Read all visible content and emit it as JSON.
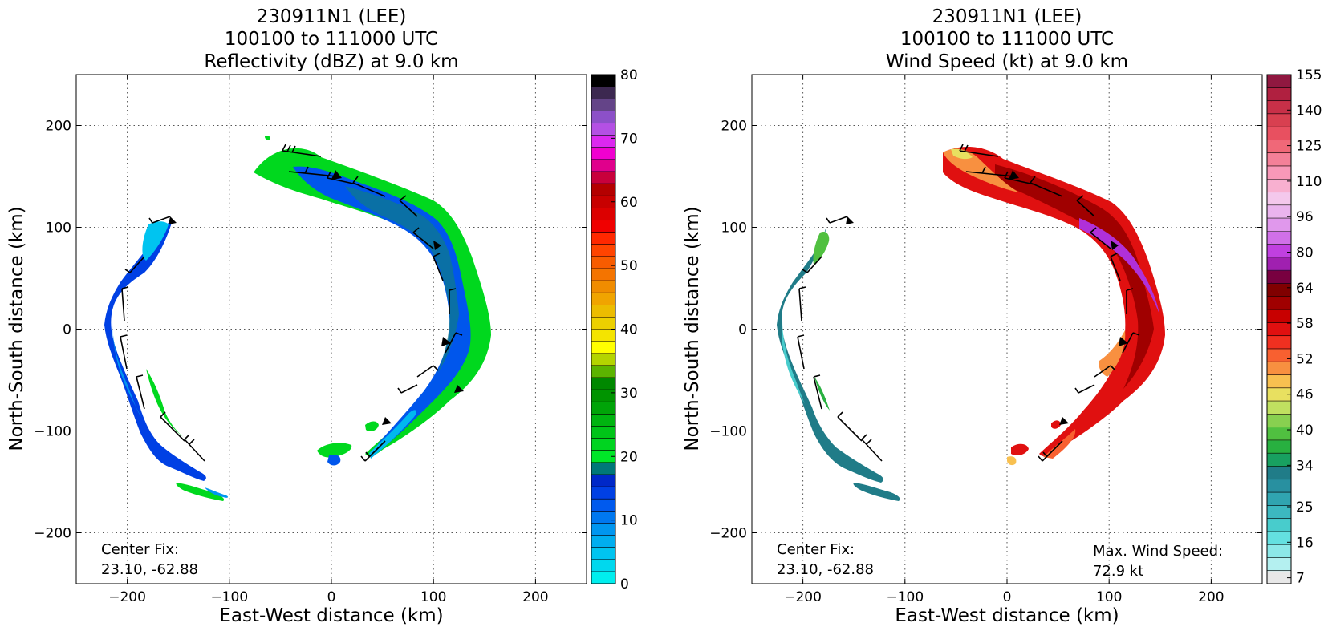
{
  "chart_data": [
    {
      "type": "heatmap",
      "title_lines": [
        "230911N1 (LEE)",
        "100100 to 111000 UTC",
        "Reflectivity (dBZ) at 9.0 km"
      ],
      "xlabel": "East-West distance (km)",
      "ylabel": "North-South distance (km)",
      "xlim": [
        -250,
        250
      ],
      "ylim": [
        -250,
        250
      ],
      "xticks": [
        -200,
        -100,
        0,
        100,
        200
      ],
      "yticks": [
        -200,
        -100,
        0,
        100,
        200
      ],
      "xtick_labels": [
        "−200",
        "−100",
        "0",
        "100",
        "200"
      ],
      "ytick_labels": [
        "−200",
        "−100",
        "0",
        "100",
        "200"
      ],
      "grid": true,
      "center_fix_label": "Center Fix:",
      "center_fix_value": "23.10, -62.88",
      "colorbar": {
        "colors": [
          "#00eeee",
          "#00d8ee",
          "#00c4f0",
          "#00aef0",
          "#0096f0",
          "#0078f0",
          "#005aee",
          "#0040e4",
          "#0028c8",
          "#007878",
          "#00e628",
          "#00d420",
          "#00c418",
          "#00b410",
          "#00a408",
          "#009400",
          "#008800",
          "#5cb400",
          "#b4d400",
          "#ffff00",
          "#f4e400",
          "#ecd000",
          "#ecbc00",
          "#f0a400",
          "#f08c00",
          "#f47400",
          "#f85c00",
          "#ff4400",
          "#ff2800",
          "#f00000",
          "#dc0000",
          "#c80000",
          "#b40000",
          "#c8003c",
          "#e0008c",
          "#f000d0",
          "#dc28f0",
          "#b450e4",
          "#8c50c8",
          "#644488",
          "#3c2850",
          "#000000"
        ],
        "tick_values": [
          0,
          10,
          20,
          30,
          40,
          50,
          60,
          70,
          80
        ],
        "tick_labels": [
          "0",
          "10",
          "20",
          "30",
          "40",
          "50",
          "60",
          "70",
          "80"
        ],
        "vmin": 0,
        "vmax": 80
      }
    },
    {
      "type": "heatmap",
      "title_lines": [
        "230911N1 (LEE)",
        "100100 to 111000 UTC",
        "Wind Speed (kt) at 9.0 km"
      ],
      "xlabel": "East-West distance (km)",
      "ylabel": "North-South distance (km)",
      "xlim": [
        -250,
        250
      ],
      "ylim": [
        -250,
        250
      ],
      "xticks": [
        -200,
        -100,
        0,
        100,
        200
      ],
      "yticks": [
        -200,
        -100,
        0,
        100,
        200
      ],
      "xtick_labels": [
        "−200",
        "−100",
        "0",
        "100",
        "200"
      ],
      "ytick_labels": [
        "−200",
        "−100",
        "0",
        "100",
        "200"
      ],
      "grid": true,
      "center_fix_label": "Center Fix:",
      "center_fix_value": "23.10, -62.88",
      "max_wind_label": "Max. Wind Speed:",
      "max_wind_value": "72.9 kt",
      "colorbar": {
        "colors": [
          "#e8e8e8",
          "#b4f0f0",
          "#8ce8e8",
          "#64e0e0",
          "#48cccc",
          "#3cb8c0",
          "#30a4b0",
          "#2890a0",
          "#207c88",
          "#18a060",
          "#28b040",
          "#50c040",
          "#88d050",
          "#c0e060",
          "#e8e060",
          "#f8c050",
          "#f89040",
          "#f86030",
          "#f03020",
          "#e01010",
          "#c80000",
          "#a00000",
          "#800000",
          "#780040",
          "#a020b0",
          "#c040e0",
          "#d070e8",
          "#e098ec",
          "#eab4ee",
          "#f4c8ec",
          "#f8b0d0",
          "#f898b8",
          "#f48098",
          "#f06878",
          "#e85060",
          "#d84050",
          "#c83048",
          "#b02040",
          "#901840"
        ],
        "tick_labels": [
          "7",
          "16",
          "25",
          "34",
          "40",
          "46",
          "52",
          "58",
          "64",
          "80",
          "96",
          "110",
          "125",
          "140",
          "155"
        ],
        "tick_rows_from_bottom": [
          0.5,
          3.5,
          6.5,
          10,
          13,
          16,
          19,
          22,
          25,
          28,
          31,
          34,
          37,
          40,
          43
        ]
      }
    }
  ]
}
